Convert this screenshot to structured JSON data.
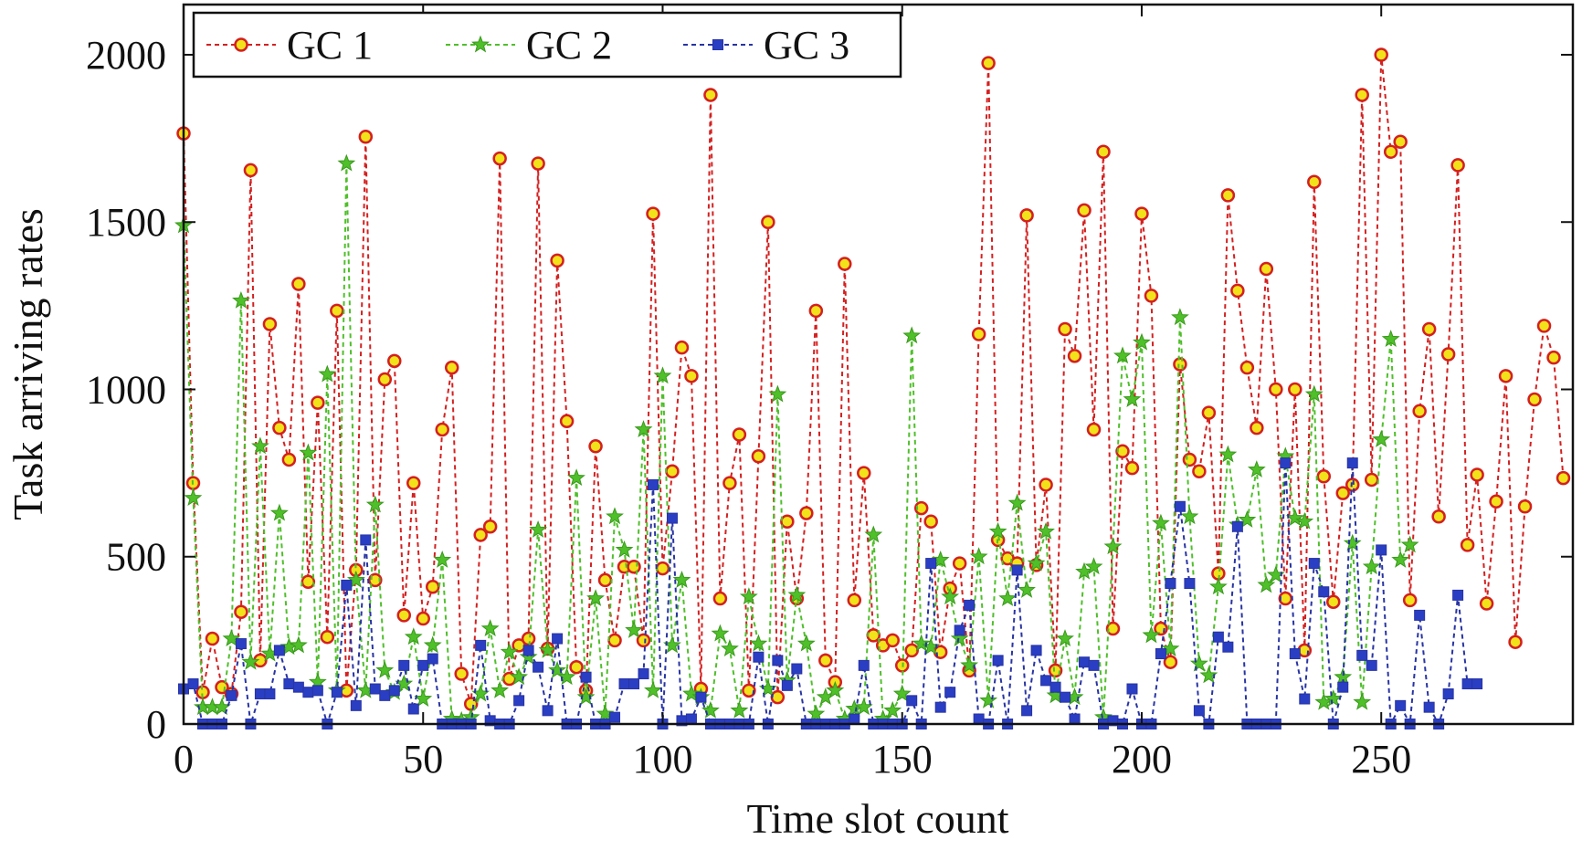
{
  "chart_data": {
    "type": "line",
    "title": "",
    "xlabel": "Time slot count",
    "ylabel": "Task arriving rates",
    "xlim": [
      0,
      290
    ],
    "ylim": [
      0,
      2150
    ],
    "xticks": [
      0,
      50,
      100,
      150,
      200,
      250
    ],
    "yticks": [
      0,
      500,
      1000,
      1500,
      2000
    ],
    "x_tick_labels": [
      "0",
      "50",
      "100",
      "150",
      "200",
      "250"
    ],
    "y_tick_labels": [
      "0",
      "500",
      "1000",
      "1500",
      "2000"
    ],
    "grid": false,
    "legend_position": "top-left",
    "x_step": 2,
    "series": [
      {
        "name": "GC 1",
        "color": "#d42020",
        "marker": "circle",
        "marker_fill": "#f2e21a",
        "values": [
          1765,
          720,
          95,
          255,
          110,
          90,
          335,
          1655,
          190,
          1195,
          885,
          790,
          1315,
          425,
          960,
          260,
          1235,
          100,
          460,
          1755,
          430,
          1030,
          1085,
          325,
          720,
          315,
          410,
          880,
          1065,
          150,
          60,
          565,
          590,
          1690,
          135,
          235,
          255,
          1675,
          225,
          1385,
          905,
          170,
          100,
          830,
          430,
          250,
          470,
          470,
          250,
          1525,
          465,
          755,
          1125,
          1040,
          105,
          1880,
          375,
          720,
          865,
          100,
          800,
          1500,
          80,
          605,
          375,
          630,
          1235,
          190,
          125,
          1375,
          370,
          750,
          265,
          235,
          250,
          175,
          220,
          645,
          605,
          215,
          405,
          480,
          160,
          1165,
          1975,
          550,
          495,
          480,
          1520,
          475,
          715,
          160,
          1180,
          1100,
          1535,
          880,
          1710,
          285,
          815,
          765,
          1525,
          1280,
          285,
          185,
          1075,
          790,
          755,
          930,
          450,
          1580,
          1295,
          1065,
          885,
          1360,
          1000,
          375,
          1000,
          220,
          1620,
          740,
          365,
          690,
          715,
          1880,
          730,
          2000,
          1710,
          1740,
          370,
          935,
          1180,
          620,
          1105,
          1670,
          535,
          745,
          360,
          665,
          1040,
          245,
          650,
          970,
          1190,
          1095,
          735
        ]
      },
      {
        "name": "GC 2",
        "color": "#4fbf2a",
        "marker": "star",
        "marker_fill": "#4fbf2a",
        "values": [
          1490,
          675,
          50,
          50,
          50,
          255,
          1265,
          185,
          830,
          210,
          630,
          230,
          235,
          810,
          125,
          1045,
          100,
          1675,
          430,
          100,
          655,
          160,
          95,
          120,
          260,
          75,
          235,
          490,
          15,
          10,
          20,
          90,
          285,
          100,
          215,
          140,
          200,
          580,
          220,
          160,
          140,
          735,
          80,
          375,
          30,
          620,
          520,
          280,
          880,
          100,
          1040,
          235,
          430,
          90,
          80,
          40,
          270,
          225,
          40,
          380,
          240,
          105,
          985,
          130,
          385,
          240,
          30,
          80,
          100,
          15,
          45,
          50,
          565,
          15,
          40,
          90,
          1160,
          240,
          230,
          490,
          380,
          255,
          175,
          500,
          70,
          575,
          375,
          660,
          400,
          480,
          575,
          85,
          255,
          80,
          455,
          470,
          20,
          530,
          1100,
          970,
          1140,
          265,
          600,
          225,
          1215,
          620,
          180,
          145,
          410,
          805,
          595,
          610,
          760,
          415,
          445,
          800,
          615,
          605,
          985,
          65,
          75,
          140,
          540,
          65,
          470,
          850,
          1150,
          490,
          535
        ]
      },
      {
        "name": "GC 3",
        "color": "#2834a3",
        "marker": "square",
        "marker_fill": "#2a3ec4",
        "values": [
          105,
          120,
          0,
          0,
          0,
          85,
          240,
          0,
          90,
          90,
          220,
          120,
          110,
          95,
          100,
          0,
          95,
          415,
          55,
          550,
          105,
          85,
          100,
          175,
          45,
          175,
          195,
          0,
          0,
          0,
          0,
          235,
          10,
          0,
          0,
          70,
          220,
          170,
          40,
          255,
          0,
          0,
          140,
          0,
          0,
          20,
          120,
          120,
          150,
          715,
          0,
          615,
          10,
          15,
          80,
          0,
          0,
          0,
          0,
          0,
          200,
          0,
          190,
          115,
          165,
          0,
          0,
          0,
          0,
          0,
          15,
          175,
          0,
          0,
          0,
          0,
          70,
          0,
          480,
          50,
          95,
          280,
          355,
          15,
          0,
          190,
          0,
          460,
          40,
          220,
          130,
          110,
          80,
          15,
          185,
          175,
          0,
          10,
          0,
          105,
          0,
          0,
          210,
          420,
          650,
          420,
          40,
          0,
          260,
          230,
          590,
          0,
          0,
          0,
          0,
          780,
          210,
          75,
          480,
          395,
          0,
          110,
          780,
          205,
          175,
          520,
          0,
          55,
          0,
          325,
          50,
          0,
          90,
          385,
          120,
          120
        ]
      }
    ]
  }
}
